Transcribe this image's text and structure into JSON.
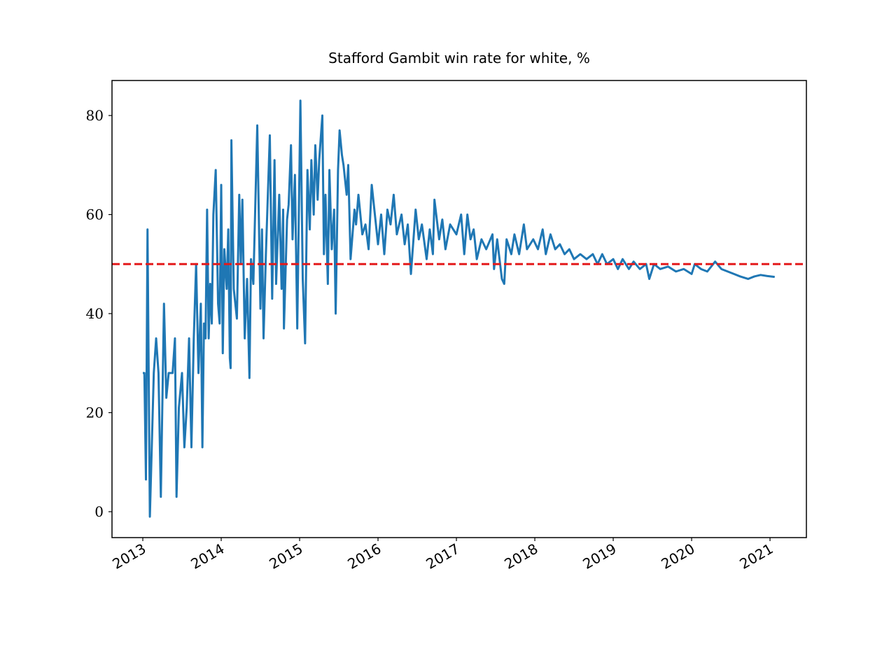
{
  "chart_data": {
    "type": "line",
    "title": "Stafford Gambit win rate for white, %",
    "x": [
      2013.0,
      2013.02,
      2013.04,
      2013.06,
      2013.09,
      2013.14,
      2013.17,
      2013.2,
      2013.23,
      2013.27,
      2013.3,
      2013.33,
      2013.38,
      2013.41,
      2013.43,
      2013.46,
      2013.5,
      2013.53,
      2013.56,
      2013.59,
      2013.62,
      2013.65,
      2013.68,
      2013.71,
      2013.74,
      2013.76,
      2013.78,
      2013.8,
      2013.82,
      2013.84,
      2013.86,
      2013.88,
      2013.9,
      2013.93,
      2013.96,
      2013.98,
      2014.0,
      2014.02,
      2014.04,
      2014.07,
      2014.09,
      2014.11,
      2014.12,
      2014.13,
      2014.16,
      2014.2,
      2014.23,
      2014.25,
      2014.27,
      2014.3,
      2014.33,
      2014.36,
      2014.38,
      2014.41,
      2014.46,
      2014.5,
      2014.52,
      2014.54,
      2014.57,
      2014.62,
      2014.65,
      2014.68,
      2014.7,
      2014.74,
      2014.77,
      2014.79,
      2014.8,
      2014.84,
      2014.86,
      2014.89,
      2014.91,
      2014.94,
      2014.97,
      2015.01,
      2015.04,
      2015.07,
      2015.1,
      2015.13,
      2015.15,
      2015.18,
      2015.2,
      2015.23,
      2015.25,
      2015.29,
      2015.31,
      2015.33,
      2015.36,
      2015.38,
      2015.41,
      2015.44,
      2015.46,
      2015.49,
      2015.51,
      2015.54,
      2015.56,
      2015.6,
      2015.62,
      2015.65,
      2015.7,
      2015.72,
      2015.75,
      2015.8,
      2015.84,
      2015.88,
      2015.92,
      2015.96,
      2016.0,
      2016.04,
      2016.08,
      2016.12,
      2016.16,
      2016.2,
      2016.24,
      2016.3,
      2016.34,
      2016.38,
      2016.42,
      2016.48,
      2016.52,
      2016.56,
      2016.62,
      2016.66,
      2016.7,
      2016.72,
      2016.78,
      2016.82,
      2016.86,
      2016.92,
      2017.0,
      2017.06,
      2017.1,
      2017.14,
      2017.18,
      2017.22,
      2017.26,
      2017.32,
      2017.38,
      2017.46,
      2017.48,
      2017.52,
      2017.58,
      2017.61,
      2017.64,
      2017.7,
      2017.74,
      2017.8,
      2017.86,
      2017.9,
      2017.98,
      2018.04,
      2018.1,
      2018.14,
      2018.2,
      2018.26,
      2018.32,
      2018.38,
      2018.44,
      2018.5,
      2018.58,
      2018.66,
      2018.74,
      2018.8,
      2018.86,
      2018.92,
      2019.0,
      2019.06,
      2019.12,
      2019.2,
      2019.26,
      2019.34,
      2019.42,
      2019.46,
      2019.52,
      2019.6,
      2019.7,
      2019.8,
      2019.9,
      2020.0,
      2020.04,
      2020.12,
      2020.2,
      2020.3,
      2020.38,
      2020.46,
      2020.54,
      2020.62,
      2020.72,
      2020.8,
      2020.88,
      2020.96,
      2021.06
    ],
    "series": [
      {
        "color": "#1f77b4",
        "values": [
          28,
          28,
          6.5,
          57,
          -1,
          28,
          35,
          28,
          3,
          42,
          23,
          28,
          28,
          35,
          3,
          21,
          28,
          13,
          21,
          35,
          13,
          35,
          50,
          28,
          42,
          13,
          38,
          35,
          61,
          35,
          46,
          38,
          60,
          69,
          42,
          38,
          66,
          32,
          53,
          45,
          57,
          31,
          29,
          75,
          45,
          39,
          64,
          50,
          63,
          35,
          47,
          27,
          51,
          46,
          78,
          41,
          57,
          35,
          52,
          76,
          43,
          71,
          46,
          64,
          45,
          61,
          37,
          59,
          62,
          74,
          55,
          68,
          37,
          83,
          47,
          34,
          69,
          57,
          71,
          60,
          74,
          63,
          71,
          80,
          52,
          64,
          46,
          69,
          53,
          61,
          40,
          69,
          77,
          72,
          70,
          64,
          70,
          51,
          61,
          58,
          64,
          56,
          58,
          53,
          66,
          60,
          54,
          60,
          52,
          61,
          58,
          64,
          56,
          60,
          54,
          58,
          48,
          61,
          55,
          58,
          51,
          57,
          52,
          63,
          55,
          59,
          53,
          58,
          56,
          60,
          52,
          60,
          55,
          57,
          51,
          55,
          53,
          56,
          49,
          55,
          47,
          46,
          55,
          52,
          56,
          52,
          58,
          53,
          55,
          53,
          57,
          52,
          56,
          53,
          54,
          52,
          53,
          51,
          52,
          51,
          52,
          50,
          52,
          50,
          51,
          49,
          51,
          49,
          50.5,
          49,
          50,
          47,
          50,
          49,
          49.5,
          48.5,
          49,
          48,
          50,
          49,
          48.5,
          50.5,
          49,
          48.5,
          48,
          47.5,
          47,
          47.5,
          47.8,
          47.6,
          47.4
        ]
      }
    ],
    "hline": {
      "value": 50,
      "color": "#e41a1c"
    },
    "xlim": [
      2012.607,
      2021.464
    ],
    "xticks": [
      2013,
      2014,
      2015,
      2016,
      2017,
      2018,
      2019,
      2020,
      2021
    ],
    "ylim": [
      -5.23,
      87.07
    ],
    "yticks": [
      0,
      20,
      40,
      60,
      80
    ]
  }
}
